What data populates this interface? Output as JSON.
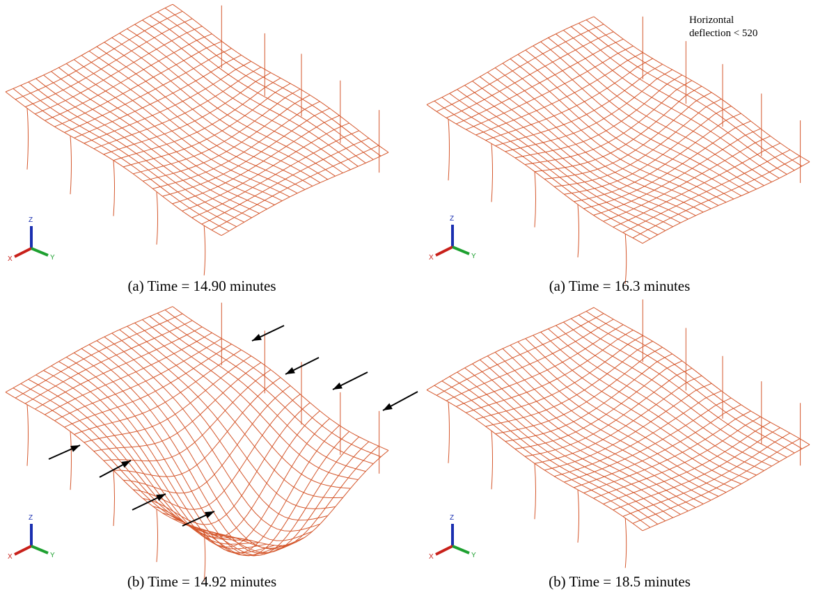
{
  "panels": [
    {
      "caption": "(a) Time =  14.90 minutes"
    },
    {
      "caption": "(a) Time = 16.3 minutes",
      "annotation": [
        "Horizontal",
        "deflection < 520"
      ]
    },
    {
      "caption": "(b) Time = 14.92 minutes"
    },
    {
      "caption": "(b) Time = 18.5 minutes"
    }
  ],
  "axis_labels": {
    "z": "Z",
    "x": "X",
    "y": "Y"
  }
}
